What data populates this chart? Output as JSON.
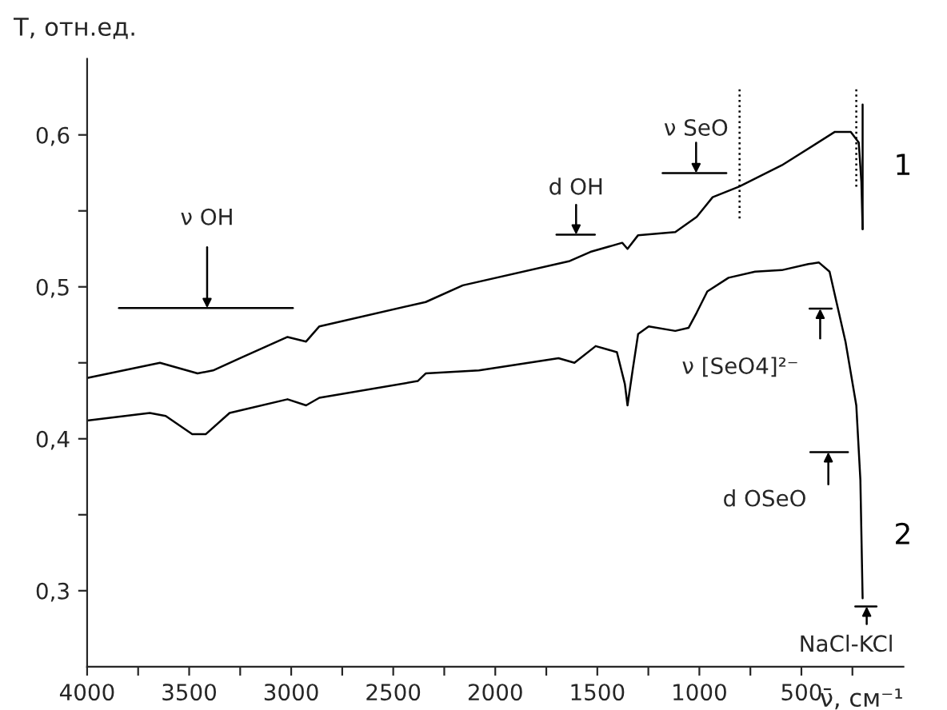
{
  "chart_data": {
    "type": "line",
    "ylabel": "T, отн.ед.",
    "xlabel": "ν̄, см⁻¹",
    "xlim": [
      4000,
      0
    ],
    "ylim": [
      0.25,
      0.65
    ],
    "xticks": [
      4000,
      {
        "value": 3750,
        "label": null
      },
      3500,
      {
        "value": 3250,
        "label": null
      },
      3000,
      {
        "value": 2750,
        "label": null
      },
      2500,
      {
        "value": 2250,
        "label": null
      },
      2000,
      {
        "value": 1750,
        "label": null
      },
      1500,
      {
        "value": 1250,
        "label": null
      },
      1000,
      {
        "value": 750,
        "label": null
      },
      500,
      {
        "value": 250,
        "label": null
      }
    ],
    "yticks": [
      {
        "value": 0.3,
        "label": "0,3"
      },
      {
        "value": 0.35,
        "label": null
      },
      {
        "value": 0.4,
        "label": "0,4"
      },
      {
        "value": 0.45,
        "label": null
      },
      {
        "value": 0.5,
        "label": "0,5"
      },
      {
        "value": 0.55,
        "label": null
      },
      {
        "value": 0.6,
        "label": "0,6"
      }
    ],
    "grid": false,
    "legend": false,
    "marker": "none",
    "series": [
      {
        "name": "1",
        "color": "#000000",
        "line_style": "solid",
        "x": [
          4000,
          3643,
          3459,
          3383,
          3252,
          3018,
          2927,
          2862,
          2341,
          2159,
          1635,
          1534,
          1378,
          1352,
          1300,
          1118,
          1013,
          935,
          805,
          596,
          336,
          258,
          219,
          206,
          200
        ],
        "values": [
          0.44,
          0.45,
          0.443,
          0.445,
          0.453,
          0.467,
          0.464,
          0.474,
          0.49,
          0.501,
          0.517,
          0.523,
          0.529,
          0.525,
          0.534,
          0.536,
          0.546,
          0.559,
          0.566,
          0.58,
          0.602,
          0.602,
          0.595,
          0.569,
          0.538
        ]
      },
      {
        "name": "2",
        "color": "#000000",
        "line_style": "solid",
        "x": [
          4000,
          3693,
          3615,
          3485,
          3419,
          3302,
          3018,
          2927,
          2862,
          2380,
          2341,
          2080,
          1690,
          1612,
          1508,
          1404,
          1365,
          1352,
          1326,
          1300,
          1248,
          1118,
          1053,
          1013,
          961,
          857,
          727,
          596,
          466,
          414,
          362,
          284,
          231,
          211,
          200
        ],
        "values": [
          0.412,
          0.417,
          0.415,
          0.403,
          0.403,
          0.417,
          0.426,
          0.422,
          0.427,
          0.438,
          0.443,
          0.445,
          0.453,
          0.45,
          0.461,
          0.457,
          0.436,
          0.422,
          0.446,
          0.469,
          0.474,
          0.471,
          0.473,
          0.483,
          0.497,
          0.506,
          0.51,
          0.511,
          0.515,
          0.516,
          0.51,
          0.464,
          0.422,
          0.373,
          0.295
        ]
      },
      {
        "color": "#000000",
        "line_style": "dotted",
        "x": [
          803,
          803
        ],
        "values": [
          0.63,
          0.544
        ]
      },
      {
        "color": "#000000",
        "line_style": "dotted",
        "x": [
          231,
          231
        ],
        "values": [
          0.63,
          0.565
        ]
      },
      {
        "color": "#000000",
        "line_style": "solid",
        "x": [
          200,
          200
        ],
        "values": [
          0.62,
          0.538
        ]
      }
    ],
    "annotations": [
      "ν OH",
      "d OH",
      "ν SeO",
      "ν [SeO4]²⁻",
      "d OSeO",
      "NaCl-KCl"
    ]
  }
}
